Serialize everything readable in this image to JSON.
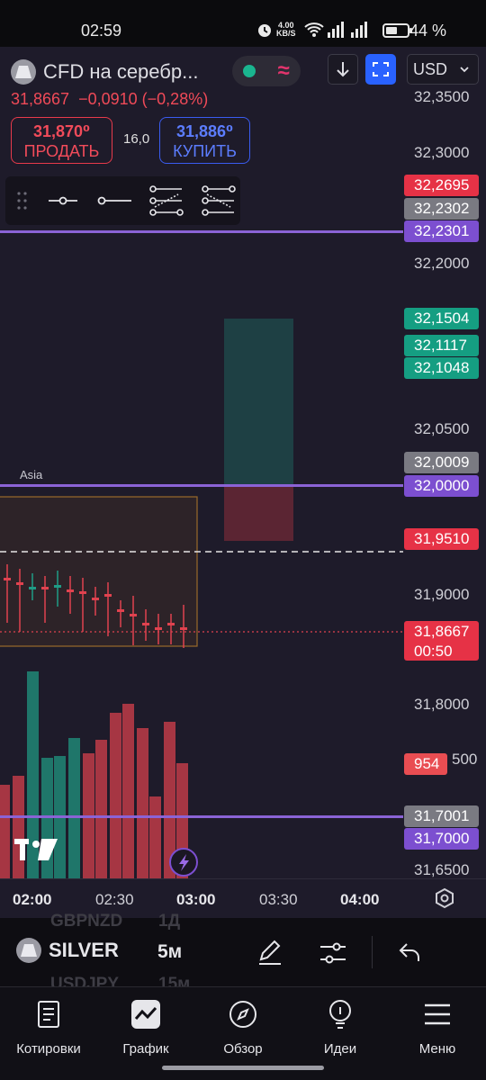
{
  "status_bar": {
    "time": "02:59",
    "speed_value": "4.00",
    "speed_unit": "KB/S",
    "battery": "44 %"
  },
  "header": {
    "symbol_title": "CFD на серебр...",
    "last_price": "31,8667",
    "change": "−0,0910 (−0,28%)",
    "currency": "USD"
  },
  "trade": {
    "sell_price": "31,870⁰",
    "sell_label": "ПРОДАТЬ",
    "spread": "16,0",
    "buy_price": "31,886⁰",
    "buy_label": "КУПИТЬ"
  },
  "price_scale": {
    "labels": [
      "32,3500",
      "32,3000",
      "32,2000",
      "32,0500",
      "31,9000",
      "31,8000",
      "31,6500"
    ],
    "tags": [
      {
        "text": "32,2695",
        "color": "#e63246"
      },
      {
        "text": "32,2302",
        "color": "#7a7a82"
      },
      {
        "text": "32,2301",
        "color": "#7c4fd0"
      },
      {
        "text": "32,1504",
        "color": "#159e82"
      },
      {
        "text": "32,1117",
        "color": "#159e82"
      },
      {
        "text": "32,1048",
        "color": "#159e82"
      },
      {
        "text": "32,0009",
        "color": "#7a7a82"
      },
      {
        "text": "32,0000",
        "color": "#7c4fd0"
      },
      {
        "text": "31,9510",
        "color": "#e63246"
      },
      {
        "text": "31,8667",
        "color": "#e63246"
      },
      {
        "text": "00:50",
        "color": "#e63246"
      },
      {
        "text": "954",
        "color": "#e94d52"
      },
      {
        "text": "31,7001",
        "color": "#7a7a82"
      },
      {
        "text": "31,7000",
        "color": "#7c4fd0"
      }
    ],
    "partial_label": "500"
  },
  "session_label": "Asia",
  "time_axis": {
    "labels": [
      "02:00",
      "02:30",
      "03:00",
      "03:30",
      "04:00"
    ]
  },
  "toolbar": {
    "symbol": "SILVER",
    "timeframe": "5м",
    "ghost_1": "GBPNZD",
    "ghost_2": "1Д",
    "ghost_3": "USDJPY",
    "ghost_4": "15м"
  },
  "nav": {
    "items": [
      {
        "label": "Котировки",
        "icon": "watchlist-icon"
      },
      {
        "label": "График",
        "icon": "chart-icon"
      },
      {
        "label": "Обзор",
        "icon": "compass-icon"
      },
      {
        "label": "Идеи",
        "icon": "lightbulb-icon"
      },
      {
        "label": "Меню",
        "icon": "menu-icon"
      }
    ]
  },
  "colors": {
    "up": "#1f9c86",
    "down": "#e0424f",
    "level_line": "#8b63d6",
    "background": "#1e1b2a"
  }
}
